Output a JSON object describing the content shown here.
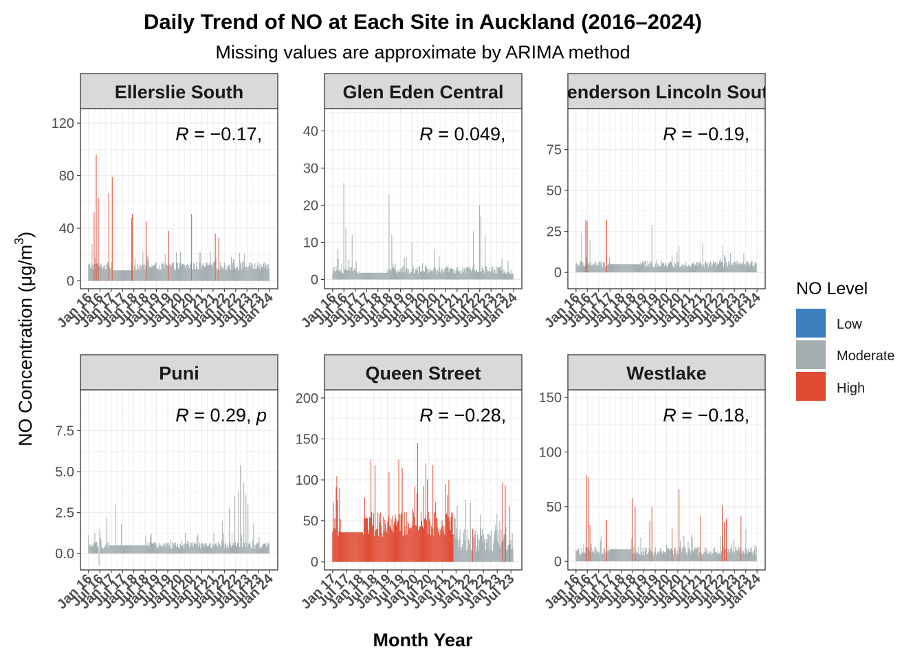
{
  "chart_data": {
    "type": "bar",
    "title": "Daily Trend of NO at Each Site in Auckland (2016–2024)",
    "subtitle": "Missing values are approximate by ARIMA method",
    "xlabel": "Month Year",
    "ylabel": "NO Concentration (μg/m³)",
    "ylabel_text": "NO Concentration (μg/m",
    "ylabel_sup": "3",
    "ylabel_close": ")",
    "legend": {
      "title": "NO Level",
      "position": "right",
      "entries": [
        {
          "label": "Low",
          "color": "#3b7fbf"
        },
        {
          "label": "Moderate",
          "color": "#a3adb0"
        },
        {
          "label": "High",
          "color": "#e04b34"
        }
      ]
    },
    "panels": [
      {
        "site": "Ellerslie South",
        "cor_label": "R = −0.17, ",
        "r_prefix": "R",
        "r_value": " = −0.17, ",
        "ylim": [
          -6,
          131
        ],
        "yticks": [
          0,
          40,
          80,
          120
        ],
        "ytick_labels": [
          "0",
          "40",
          "80",
          "120"
        ],
        "x_range": [
          2016,
          2024
        ],
        "x_tick_years": [
          2016,
          2016.5,
          2017,
          2017.5,
          2018,
          2018.5,
          2019,
          2019.5,
          2020,
          2020.5,
          2021,
          2021.5,
          2022,
          2022.5,
          2023,
          2023.5,
          2024
        ],
        "x_tick_labels": [
          "Jan 16",
          "Jul 16",
          "Jan 17",
          "Jul 17",
          "Jan 18",
          "Jul 18",
          "Jan 19",
          "Jul 19",
          "Jan 20",
          "Jul 20",
          "Jan 21",
          "Jul 21",
          "Jan 22",
          "Jul 22",
          "Jan 23",
          "Jul 23",
          "Jan 24"
        ],
        "baseline": 8,
        "noise": 9,
        "flat_segments": [
          {
            "from": 2017.1,
            "to": 2018.0,
            "value": 8
          }
        ],
        "high_threshold": 30,
        "peaks": [
          {
            "t": 2016.15,
            "v": 28
          },
          {
            "t": 2016.25,
            "v": 52
          },
          {
            "t": 2016.33,
            "v": 96
          },
          {
            "t": 2016.42,
            "v": 63
          },
          {
            "t": 2016.9,
            "v": 67
          },
          {
            "t": 2017.05,
            "v": 79
          },
          {
            "t": 2017.9,
            "v": 48
          },
          {
            "t": 2017.95,
            "v": 51
          },
          {
            "t": 2018.55,
            "v": 45
          },
          {
            "t": 2019.55,
            "v": 38
          },
          {
            "t": 2020.05,
            "v": 22
          },
          {
            "t": 2020.55,
            "v": 51
          },
          {
            "t": 2021.6,
            "v": 36
          },
          {
            "t": 2021.75,
            "v": 33
          },
          {
            "t": 2022.3,
            "v": 18
          },
          {
            "t": 2023.2,
            "v": 14
          }
        ]
      },
      {
        "site": "Glen Eden Central",
        "cor_label": "R = 0.049, ",
        "r_prefix": "R",
        "r_value": " = 0.049, ",
        "ylim": [
          -2.5,
          46
        ],
        "yticks": [
          0,
          10,
          20,
          30,
          40
        ],
        "ytick_labels": [
          "0",
          "10",
          "20",
          "30",
          "40"
        ],
        "x_range": [
          2016,
          2024
        ],
        "x_tick_years": [
          2016,
          2016.5,
          2017,
          2017.5,
          2018,
          2018.5,
          2019,
          2019.5,
          2020,
          2020.5,
          2021,
          2021.5,
          2022,
          2022.5,
          2023,
          2023.5,
          2024
        ],
        "x_tick_labels": [
          "Jan 16",
          "Jul 16",
          "Jan 17",
          "Jul 17",
          "Jan 18",
          "Jul 18",
          "Jan 19",
          "Jul 19",
          "Jan 20",
          "Jul 20",
          "Jan 21",
          "Jul 21",
          "Jan 22",
          "Jul 22",
          "Jan 23",
          "Jul 23",
          "Jan 24"
        ],
        "baseline": 1.5,
        "noise": 3,
        "flat_segments": [
          {
            "from": 2017.2,
            "to": 2018.4,
            "value": 1.8
          }
        ],
        "high_threshold": 60,
        "peaks": [
          {
            "t": 2016.2,
            "v": 8
          },
          {
            "t": 2016.48,
            "v": 26
          },
          {
            "t": 2016.6,
            "v": 14
          },
          {
            "t": 2016.85,
            "v": 12
          },
          {
            "t": 2018.5,
            "v": 23
          },
          {
            "t": 2018.62,
            "v": 12
          },
          {
            "t": 2019.5,
            "v": 10
          },
          {
            "t": 2020.5,
            "v": 8
          },
          {
            "t": 2022.2,
            "v": 13
          },
          {
            "t": 2022.48,
            "v": 20
          },
          {
            "t": 2022.55,
            "v": 17
          },
          {
            "t": 2022.75,
            "v": 12
          },
          {
            "t": 2023.75,
            "v": 5
          }
        ]
      },
      {
        "site": "Henderson Lincoln South",
        "cor_label": "R = −0.19, ",
        "r_prefix": "R",
        "r_value": " = −0.19, ",
        "ylim": [
          -10,
          100
        ],
        "yticks": [
          0,
          25,
          50,
          75
        ],
        "ytick_labels": [
          "0",
          "25",
          "50",
          "75"
        ],
        "x_range": [
          2016,
          2024
        ],
        "x_tick_years": [
          2016,
          2016.5,
          2017,
          2017.5,
          2018,
          2018.5,
          2019,
          2019.5,
          2020,
          2020.5,
          2021,
          2021.5,
          2022,
          2022.5,
          2023,
          2023.5,
          2024
        ],
        "x_tick_labels": [
          "Jan 16",
          "Jul 16",
          "Jan 17",
          "Jul 17",
          "Jan 18",
          "Jul 18",
          "Jan 19",
          "Jul 19",
          "Jan 20",
          "Jul 20",
          "Jan 21",
          "Jul 21",
          "Jan 22",
          "Jul 22",
          "Jan 23",
          "Jul 23",
          "Jan 24"
        ],
        "baseline": 3,
        "noise": 6,
        "flat_segments": [
          {
            "from": 2017.5,
            "to": 2018.8,
            "value": 5
          }
        ],
        "high_threshold": 30,
        "peaks": [
          {
            "t": 2016.25,
            "v": 24
          },
          {
            "t": 2016.42,
            "v": 32
          },
          {
            "t": 2016.5,
            "v": 31
          },
          {
            "t": 2016.62,
            "v": 20
          },
          {
            "t": 2017.35,
            "v": 32
          },
          {
            "t": 2019.35,
            "v": 29
          },
          {
            "t": 2020.55,
            "v": 16
          },
          {
            "t": 2021.6,
            "v": 18
          },
          {
            "t": 2022.5,
            "v": 16
          }
        ]
      },
      {
        "site": "Puni",
        "cor_label": "R = 0.29, p",
        "r_prefix": "R",
        "r_value": " = 0.29, ",
        "r_suffix": "p",
        "ylim": [
          -1.0,
          10.0
        ],
        "yticks": [
          0.0,
          2.5,
          5.0,
          7.5
        ],
        "ytick_labels": [
          "0.0",
          "2.5",
          "5.0",
          "7.5"
        ],
        "x_range": [
          2016,
          2024
        ],
        "x_tick_years": [
          2016,
          2016.5,
          2017,
          2017.5,
          2018,
          2018.5,
          2019,
          2019.5,
          2020,
          2020.5,
          2021,
          2021.5,
          2022,
          2022.5,
          2023,
          2023.5,
          2024
        ],
        "x_tick_labels": [
          "Jan 16",
          "Jul 16",
          "Jan 17",
          "Jul 17",
          "Jan 18",
          "Jul 18",
          "Jan 19",
          "Jul 19",
          "Jan 20",
          "Jul 20",
          "Jan 21",
          "Jul 21",
          "Jan 22",
          "Jul 22",
          "Jan 23",
          "Jul 23",
          "Jan 24"
        ],
        "baseline": 0.3,
        "noise": 0.6,
        "flat_segments": [
          {
            "from": 2016.9,
            "to": 2018.5,
            "value": 0.5
          }
        ],
        "high_threshold": 99,
        "negatives": [
          {
            "t": 2016.45,
            "v": -0.7
          }
        ],
        "peaks": [
          {
            "t": 2016.5,
            "v": 1.5
          },
          {
            "t": 2016.8,
            "v": 2.2
          },
          {
            "t": 2017.2,
            "v": 3.0
          },
          {
            "t": 2017.45,
            "v": 1.8
          },
          {
            "t": 2021.9,
            "v": 2.0
          },
          {
            "t": 2022.2,
            "v": 2.8
          },
          {
            "t": 2022.45,
            "v": 3.5
          },
          {
            "t": 2022.62,
            "v": 3.8
          },
          {
            "t": 2022.72,
            "v": 5.4
          },
          {
            "t": 2022.85,
            "v": 4.3
          },
          {
            "t": 2022.95,
            "v": 3.6
          },
          {
            "t": 2023.05,
            "v": 3.0
          },
          {
            "t": 2023.3,
            "v": 1.8
          },
          {
            "t": 2023.55,
            "v": 1.0
          }
        ]
      },
      {
        "site": "Queen Street",
        "cor_label": "R = −0.28, ",
        "r_prefix": "R",
        "r_value": " = −0.28, ",
        "ylim": [
          -10,
          210
        ],
        "yticks": [
          0,
          50,
          100,
          150,
          200
        ],
        "ytick_labels": [
          "0",
          "50",
          "100",
          "150",
          "200"
        ],
        "x_range": [
          2017,
          2023.6
        ],
        "x_tick_years": [
          2017,
          2017.5,
          2018,
          2018.5,
          2019,
          2019.5,
          2020,
          2020.5,
          2021,
          2021.5,
          2022,
          2022.5,
          2023,
          2023.5
        ],
        "x_tick_labels": [
          "Jan 17",
          "Jul 17",
          "Jan 18",
          "Jul 18",
          "Jan 19",
          "Jul 19",
          "Jan 20",
          "Jul 20",
          "Jan 21",
          "Jul 21",
          "Jan 22",
          "Jul 22",
          "Jan 23",
          "Jul 23"
        ],
        "baseline": 30,
        "noise": 45,
        "flat_segments": [
          {
            "from": 2017.3,
            "to": 2018.1,
            "value": 36
          }
        ],
        "high_threshold": 30,
        "moderate_from": 2021.4,
        "moderate_baseline": 12,
        "peaks": [
          {
            "t": 2017.15,
            "v": 105
          },
          {
            "t": 2017.25,
            "v": 90
          },
          {
            "t": 2018.4,
            "v": 125
          },
          {
            "t": 2018.55,
            "v": 118
          },
          {
            "t": 2019.05,
            "v": 110
          },
          {
            "t": 2019.4,
            "v": 125
          },
          {
            "t": 2019.55,
            "v": 115
          },
          {
            "t": 2020.1,
            "v": 145
          },
          {
            "t": 2020.4,
            "v": 120
          },
          {
            "t": 2020.65,
            "v": 118
          },
          {
            "t": 2021.1,
            "v": 95
          },
          {
            "t": 2022.1,
            "v": 40
          },
          {
            "t": 2023.2,
            "v": 97
          },
          {
            "t": 2023.3,
            "v": 93
          },
          {
            "t": 2023.45,
            "v": 68
          }
        ]
      },
      {
        "site": "Westlake",
        "cor_label": "R = −0.18, ",
        "r_prefix": "R",
        "r_value": " = −0.18, ",
        "ylim": [
          -8,
          157
        ],
        "yticks": [
          0,
          50,
          100,
          150
        ],
        "ytick_labels": [
          "0",
          "50",
          "100",
          "150"
        ],
        "x_range": [
          2016,
          2024
        ],
        "x_tick_years": [
          2016,
          2016.5,
          2017,
          2017.5,
          2018,
          2018.5,
          2019,
          2019.5,
          2020,
          2020.5,
          2021,
          2021.5,
          2022,
          2022.5,
          2023,
          2023.5,
          2024
        ],
        "x_tick_labels": [
          "Jan 16",
          "Jul 16",
          "Jan 17",
          "Jul 17",
          "Jan 18",
          "Jul 18",
          "Jan 19",
          "Jul 19",
          "Jan 20",
          "Jul 20",
          "Jan 21",
          "Jul 21",
          "Jan 22",
          "Jul 22",
          "Jan 23",
          "Jul 23",
          "Jan 24"
        ],
        "baseline": 5,
        "noise": 12,
        "flat_segments": [
          {
            "from": 2017.5,
            "to": 2018.4,
            "value": 11
          }
        ],
        "high_threshold": 30,
        "peaks": [
          {
            "t": 2016.45,
            "v": 79
          },
          {
            "t": 2016.55,
            "v": 77
          },
          {
            "t": 2016.62,
            "v": 33
          },
          {
            "t": 2017.35,
            "v": 38
          },
          {
            "t": 2018.5,
            "v": 58
          },
          {
            "t": 2018.62,
            "v": 50
          },
          {
            "t": 2019.25,
            "v": 37
          },
          {
            "t": 2019.35,
            "v": 50
          },
          {
            "t": 2020.25,
            "v": 30
          },
          {
            "t": 2020.55,
            "v": 66
          },
          {
            "t": 2021.5,
            "v": 42
          },
          {
            "t": 2022.45,
            "v": 51
          },
          {
            "t": 2022.55,
            "v": 36
          },
          {
            "t": 2022.65,
            "v": 39
          },
          {
            "t": 2023.3,
            "v": 41
          },
          {
            "t": 2023.5,
            "v": 29
          }
        ]
      }
    ]
  }
}
